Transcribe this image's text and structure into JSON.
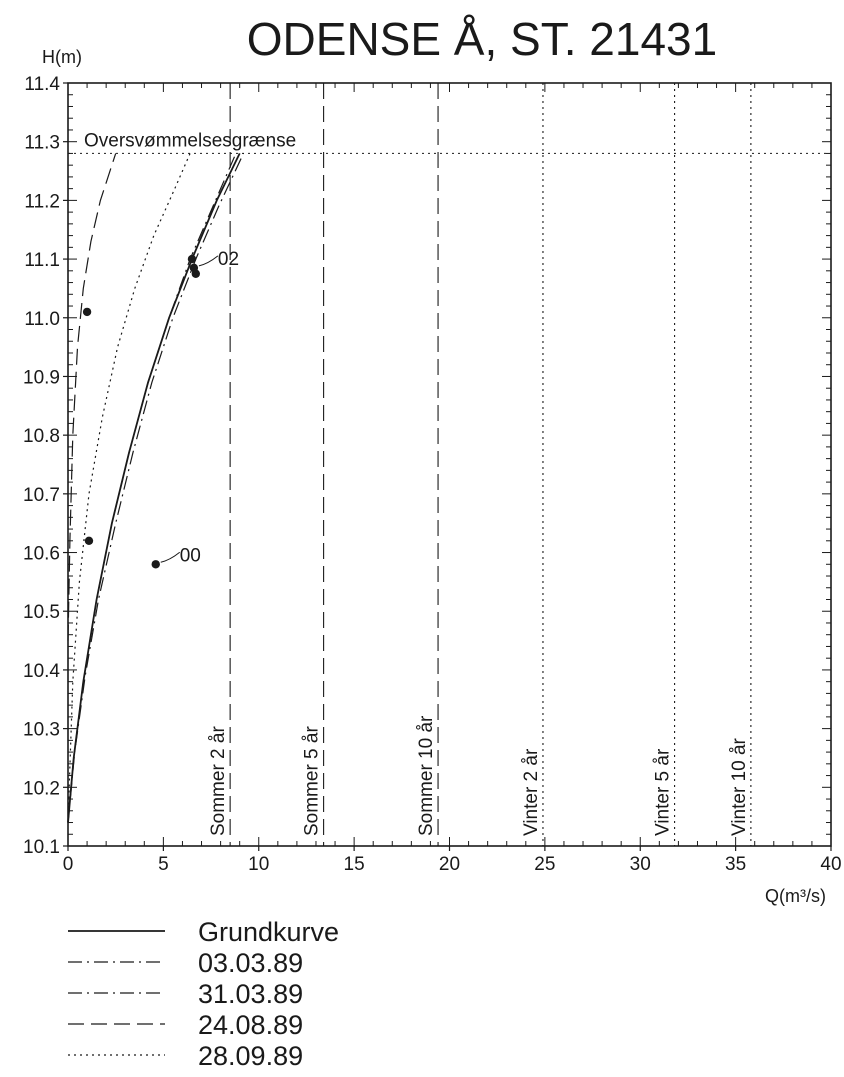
{
  "chart_data": {
    "type": "line",
    "title": "ODENSE Å, ST. 21431",
    "xlabel": "Q(m³/s)",
    "ylabel": "H(m)",
    "xlim": [
      0,
      40
    ],
    "ylim": [
      10.1,
      11.4
    ],
    "x_ticks": [
      0,
      5,
      10,
      15,
      20,
      25,
      30,
      35,
      40
    ],
    "y_ticks": [
      10.1,
      10.2,
      10.3,
      10.4,
      10.5,
      10.6,
      10.7,
      10.8,
      10.9,
      11.0,
      11.1,
      11.2,
      11.3,
      11.4
    ],
    "x_tick_labels": [
      "0",
      "5",
      "10",
      "15",
      "20",
      "25",
      "30",
      "35",
      "40"
    ],
    "y_tick_labels": [
      "10.1",
      "10.2",
      "10.3",
      "10.4",
      "10.5",
      "10.6",
      "10.7",
      "10.8",
      "10.9",
      "11.0",
      "11.1",
      "11.2",
      "11.3",
      "11.4"
    ],
    "grid": false,
    "legend_position": "bottom-left",
    "flood_limit": {
      "label": "Oversvømmelsesgrænse",
      "y": 11.28
    },
    "reference_lines": [
      {
        "label": "Sommer 2 år",
        "x": 8.5,
        "style": "long-dash"
      },
      {
        "label": "Sommer 5 år",
        "x": 13.4,
        "style": "long-dash"
      },
      {
        "label": "Sommer 10 år",
        "x": 19.4,
        "style": "long-dash"
      },
      {
        "label": "Vinter 2 år",
        "x": 24.9,
        "style": "dotted"
      },
      {
        "label": "Vinter 5 år",
        "x": 31.8,
        "style": "dotted"
      },
      {
        "label": "Vinter 10 år",
        "x": 35.8,
        "style": "dotted"
      }
    ],
    "series": [
      {
        "name": "Grundkurve",
        "style": "solid",
        "x": [
          0,
          0.3,
          0.8,
          1.5,
          2.3,
          3.2,
          4.2,
          5.3,
          6.5,
          7.8,
          9.0
        ],
        "y": [
          10.14,
          10.25,
          10.38,
          10.52,
          10.65,
          10.77,
          10.89,
          11.0,
          11.1,
          11.2,
          11.28
        ]
      },
      {
        "name": "03.03.89",
        "style": "dash-dot",
        "x": [
          0,
          0.35,
          0.9,
          1.6,
          2.5,
          3.4,
          4.4,
          5.5,
          6.7,
          7.9,
          9.2
        ],
        "y": [
          10.14,
          10.26,
          10.39,
          10.52,
          10.65,
          10.77,
          10.89,
          11.0,
          11.1,
          11.19,
          11.28
        ]
      },
      {
        "name": "31.03.89",
        "style": "dash-dot",
        "x": [
          0,
          0.3,
          0.8,
          1.5,
          2.3,
          3.2,
          4.2,
          5.3,
          6.4,
          7.6,
          8.8
        ],
        "y": [
          10.14,
          10.25,
          10.38,
          10.52,
          10.65,
          10.77,
          10.89,
          11.0,
          11.1,
          11.19,
          11.28
        ]
      },
      {
        "name": "24.08.89",
        "style": "long-dash",
        "x": [
          0.0,
          0.1,
          0.25,
          0.5,
          0.8,
          1.2,
          1.7,
          2.5
        ],
        "y": [
          10.45,
          10.62,
          10.8,
          10.95,
          11.05,
          11.13,
          11.2,
          11.28
        ]
      },
      {
        "name": "28.09.89",
        "style": "dotted",
        "x": [
          0,
          0.25,
          0.6,
          1.1,
          1.8,
          2.6,
          3.5,
          4.5,
          5.6,
          6.4
        ],
        "y": [
          10.14,
          10.38,
          10.55,
          10.7,
          10.83,
          10.95,
          11.05,
          11.14,
          11.22,
          11.28
        ]
      }
    ],
    "points": [
      {
        "x": 1.0,
        "y": 11.01
      },
      {
        "x": 1.1,
        "y": 10.62
      },
      {
        "x": 4.6,
        "y": 10.58
      },
      {
        "x": 6.5,
        "y": 11.1
      },
      {
        "x": 6.6,
        "y": 11.085
      },
      {
        "x": 6.7,
        "y": 11.075
      }
    ],
    "annotations": [
      {
        "text": "00",
        "x": 4.6,
        "y": 10.58
      },
      {
        "text": "02",
        "x": 6.6,
        "y": 11.085
      }
    ]
  }
}
